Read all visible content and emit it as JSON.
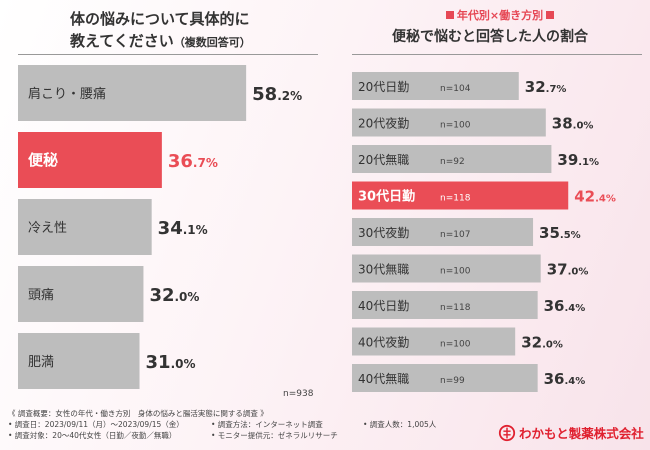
{
  "left": {
    "title_line1": "体の悩みについて具体的に",
    "title_line2": "教えてください",
    "title_sub": "（複数回答可）",
    "n_total": "n=938"
  },
  "right": {
    "tag": "年代別×働き方別",
    "title": "便秘で悩むと回答した人の割合"
  },
  "chart_data": [
    {
      "type": "bar",
      "orientation": "horizontal",
      "title": "体の悩みについて具体的に教えてください（複数回答可）",
      "categories": [
        "肩こり・腰痛",
        "便秘",
        "冷え性",
        "頭痛",
        "肥満"
      ],
      "values": [
        58.2,
        36.7,
        34.1,
        32.0,
        31.0
      ],
      "value_labels": [
        "58.2%",
        "36.7%",
        "34.1%",
        "32.0%",
        "31.0%"
      ],
      "highlight": "便秘",
      "unit": "%",
      "n": "n=938",
      "colors": {
        "bar": "#bdbdbd",
        "highlight": "#ea4d56"
      }
    },
    {
      "type": "bar",
      "orientation": "horizontal",
      "title": "便秘で悩むと回答した人の割合",
      "categories": [
        "20代日勤",
        "20代夜勤",
        "20代無職",
        "30代日勤",
        "30代夜勤",
        "30代無職",
        "40代日勤",
        "40代夜勤",
        "40代無職"
      ],
      "n_labels": [
        "n=104",
        "n=100",
        "n=92",
        "n=118",
        "n=107",
        "n=100",
        "n=118",
        "n=100",
        "n=99"
      ],
      "values": [
        32.7,
        38.0,
        39.1,
        42.4,
        35.5,
        37.0,
        36.4,
        32.0,
        36.4
      ],
      "value_labels": [
        "32.7%",
        "38.0%",
        "39.1%",
        "42.4%",
        "35.5%",
        "37.0%",
        "36.4%",
        "32.0%",
        "36.4%"
      ],
      "highlight": "30代日勤",
      "unit": "%",
      "colors": {
        "bar": "#bdbdbd",
        "highlight": "#ea4d56"
      }
    }
  ],
  "footer": {
    "line1": "《 調査概要：女性の年代・働き方別　身体の悩みと腸活実態に関する調査 》",
    "period": "• 調査日：2023/09/11（月）～2023/09/15（金）",
    "method": "• 調査方法：インターネット調査",
    "people": "• 調査人数：1,005人",
    "target": "• 調査対象：20～40代女性（日勤／夜勤／無職）",
    "provider": "• モニター提供元：ゼネラルリサーチ"
  },
  "logo": {
    "text": "わかもと製薬株式会社"
  }
}
